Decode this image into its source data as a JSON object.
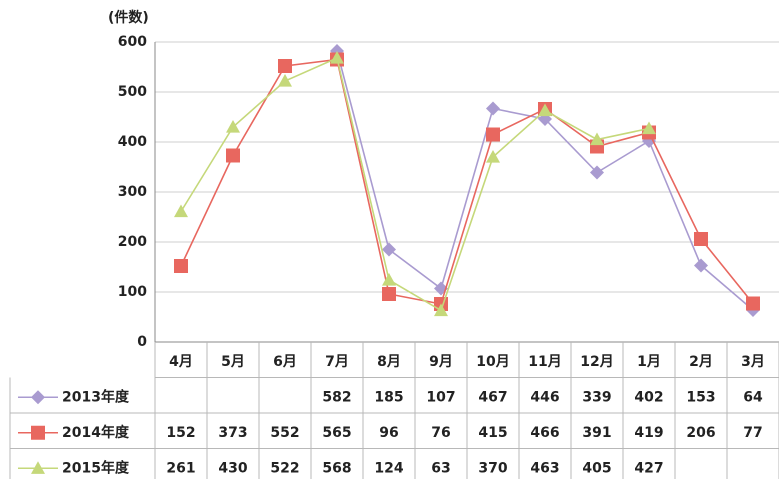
{
  "chart_data": {
    "type": "line",
    "y_label": "(件数)",
    "categories": [
      "4月",
      "5月",
      "6月",
      "7月",
      "8月",
      "9月",
      "10月",
      "11月",
      "12月",
      "1月",
      "2月",
      "3月"
    ],
    "series": [
      {
        "name": "2013年度",
        "color": "#a99bd0",
        "marker": "diamond",
        "values": [
          null,
          null,
          null,
          582,
          185,
          107,
          467,
          446,
          339,
          402,
          153,
          64
        ]
      },
      {
        "name": "2014年度",
        "color": "#e8675f",
        "marker": "square",
        "values": [
          152,
          373,
          552,
          565,
          96,
          76,
          415,
          466,
          391,
          419,
          206,
          77
        ]
      },
      {
        "name": "2015年度",
        "color": "#c5d87a",
        "marker": "triangle",
        "values": [
          261,
          430,
          522,
          568,
          124,
          63,
          370,
          463,
          405,
          427,
          null,
          null
        ]
      }
    ],
    "ylim": [
      0,
      600
    ],
    "yticks": [
      0,
      100,
      200,
      300,
      400,
      500,
      600
    ],
    "grid": true
  }
}
